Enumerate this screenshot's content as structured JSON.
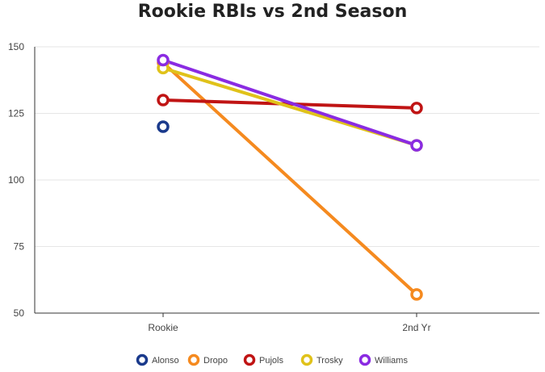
{
  "chart_data": {
    "type": "line",
    "title": "Rookie RBIs vs 2nd Season",
    "xlabel": "",
    "ylabel": "",
    "categories": [
      "Rookie",
      "2nd Yr"
    ],
    "ylim": [
      50,
      150
    ],
    "yticks": [
      50,
      75,
      100,
      125,
      150
    ],
    "grid": true,
    "legend_position": "bottom",
    "series": [
      {
        "name": "Alonso",
        "color": "#1a3a8c",
        "values": [
          120,
          null
        ]
      },
      {
        "name": "Dropo",
        "color": "#f58a1f",
        "values": [
          144,
          57
        ]
      },
      {
        "name": "Pujols",
        "color": "#c01414",
        "values": [
          130,
          127
        ]
      },
      {
        "name": "Trosky",
        "color": "#e0c21a",
        "values": [
          142,
          113
        ]
      },
      {
        "name": "Williams",
        "color": "#8a2be2",
        "values": [
          145,
          113
        ]
      }
    ]
  }
}
